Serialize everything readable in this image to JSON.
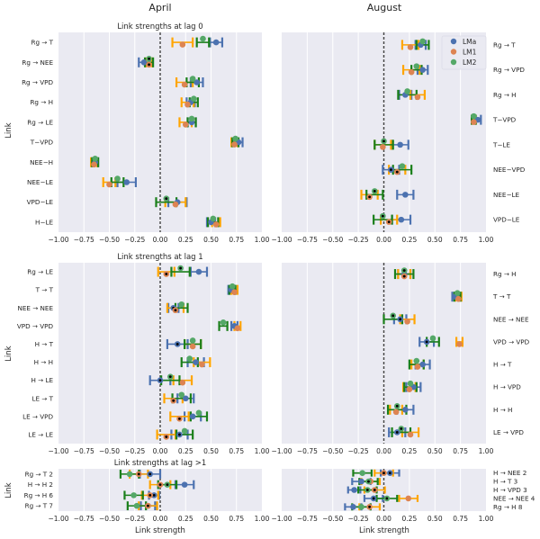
{
  "figure": {
    "column_titles": [
      "April",
      "August"
    ],
    "y_axis_label": "Link",
    "x_axis_label": "Link strength",
    "legend": {
      "placement": "upper-right of August lag-0 panel",
      "entries": [
        {
          "name": "LMa",
          "color": "#4c72b0"
        },
        {
          "name": "LM1",
          "color": "#dd8452"
        },
        {
          "name": "LM2",
          "color": "#55a868"
        }
      ]
    },
    "errorbar_colors": {
      "LMa": "#4c72b0",
      "LM1": "#ffa500",
      "LM2": "#1a7f1a"
    },
    "significance_marker_color": "#000000",
    "background_color": "#eaeaf2"
  },
  "chart_data": [
    {
      "type": "scatter",
      "panel": "April lag 0",
      "title": "Link strengths at lag 0",
      "xlabel": "",
      "ylabel": "Link",
      "xlim": [
        -1.0,
        1.0
      ],
      "xticks": [
        "−1.00",
        "−0.75",
        "−0.50",
        "−0.25",
        "0.00",
        "0.25",
        "0.50",
        "0.75",
        "1.00"
      ],
      "grid": true,
      "categories": [
        "Rg → T",
        "Rg → NEE",
        "Rg → VPD",
        "Rg → H",
        "Rg → LE",
        "T−VPD",
        "NEE−H",
        "NEE−LE",
        "VPD−LE",
        "H−LE"
      ],
      "series": [
        {
          "name": "LMa",
          "values": [
            0.55,
            -0.16,
            0.36,
            0.3,
            0.31,
            0.77,
            -0.64,
            -0.33,
            0.17,
            0.5
          ],
          "err": [
            0.06,
            0.05,
            0.06,
            0.04,
            0.04,
            0.04,
            0.03,
            0.09,
            0.09,
            0.04
          ],
          "significant": [
            false,
            false,
            false,
            false,
            false,
            false,
            false,
            false,
            false,
            false
          ]
        },
        {
          "name": "LM1",
          "values": [
            0.22,
            -0.11,
            0.24,
            0.27,
            0.25,
            0.73,
            -0.65,
            -0.5,
            0.15,
            0.55
          ],
          "err": [
            0.1,
            0.03,
            0.08,
            0.06,
            0.06,
            0.03,
            0.03,
            0.06,
            0.1,
            0.04
          ],
          "significant": [
            false,
            true,
            false,
            false,
            false,
            false,
            false,
            false,
            false,
            false
          ]
        },
        {
          "name": "LM2",
          "values": [
            0.42,
            -0.11,
            0.32,
            0.33,
            0.31,
            0.74,
            -0.64,
            -0.42,
            0.06,
            0.52
          ],
          "err": [
            0.06,
            0.04,
            0.06,
            0.04,
            0.04,
            0.03,
            0.03,
            0.06,
            0.1,
            0.05
          ],
          "significant": [
            false,
            true,
            false,
            false,
            false,
            false,
            false,
            false,
            true,
            false
          ]
        }
      ]
    },
    {
      "type": "scatter",
      "panel": "August lag 0",
      "title": "",
      "xlim": [
        -1.0,
        1.0
      ],
      "xticks": [
        "−1.00",
        "−0.75",
        "−0.50",
        "−0.25",
        "0.00",
        "0.25",
        "0.50",
        "0.75",
        "1.00"
      ],
      "grid": true,
      "categories": [
        "Rg → T",
        "Rg → VPD",
        "Rg → H",
        "T−VPD",
        "T−LE",
        "NEE−VPD",
        "NEE−LE",
        "VPD−LE"
      ],
      "series": [
        {
          "name": "LMa",
          "values": [
            0.36,
            0.38,
            0.21,
            0.92,
            0.16,
            0.07,
            0.21,
            0.17
          ],
          "err": [
            0.05,
            0.05,
            0.06,
            0.03,
            0.08,
            0.08,
            0.08,
            0.09
          ],
          "significant": [
            false,
            false,
            false,
            false,
            false,
            true,
            false,
            false
          ]
        },
        {
          "name": "LM1",
          "values": [
            0.26,
            0.27,
            0.33,
            0.88,
            -0.01,
            0.13,
            -0.14,
            0.05
          ],
          "err": [
            0.08,
            0.08,
            0.07,
            0.02,
            0.08,
            0.08,
            0.08,
            0.08
          ],
          "significant": [
            false,
            false,
            false,
            false,
            false,
            true,
            true,
            true
          ]
        },
        {
          "name": "LM2",
          "values": [
            0.38,
            0.32,
            0.23,
            0.88,
            0.0,
            0.18,
            -0.09,
            -0.01
          ],
          "err": [
            0.06,
            0.05,
            0.09,
            0.02,
            0.09,
            0.09,
            0.08,
            0.09
          ],
          "significant": [
            false,
            false,
            false,
            false,
            true,
            false,
            true,
            true
          ]
        }
      ]
    },
    {
      "type": "scatter",
      "panel": "April lag 1",
      "title": "Link strengths at lag 1",
      "xlabel": "",
      "ylabel": "Link",
      "xlim": [
        -1.0,
        1.0
      ],
      "xticks": [
        "−1.00",
        "−0.75",
        "−0.50",
        "−0.25",
        "0.00",
        "0.25",
        "0.50",
        "0.75",
        "1.00"
      ],
      "grid": true,
      "categories": [
        "Rg → LE",
        "T → T",
        "NEE → NEE",
        "VPD → VPD",
        "H → T",
        "H → H",
        "H → LE",
        "LE → T",
        "LE → VPD",
        "LE → LE"
      ],
      "series": [
        {
          "name": "LMa",
          "values": [
            0.38,
            0.7,
            0.13,
            0.73,
            0.17,
            0.35,
            0.0,
            0.25,
            0.32,
            0.19
          ],
          "err": [
            0.08,
            0.03,
            0.05,
            0.03,
            0.1,
            0.08,
            0.1,
            0.08,
            0.08,
            0.08
          ],
          "significant": [
            false,
            false,
            true,
            false,
            true,
            false,
            true,
            false,
            false,
            true
          ]
        },
        {
          "name": "LM1",
          "values": [
            0.06,
            0.73,
            0.15,
            0.76,
            0.32,
            0.41,
            0.22,
            0.13,
            0.19,
            0.06
          ],
          "err": [
            0.08,
            0.03,
            0.08,
            0.03,
            0.08,
            0.08,
            0.09,
            0.09,
            0.09,
            0.09
          ],
          "significant": [
            true,
            false,
            true,
            false,
            false,
            false,
            false,
            true,
            true,
            true
          ]
        },
        {
          "name": "LM2",
          "values": [
            0.2,
            0.71,
            0.21,
            0.62,
            0.32,
            0.29,
            0.1,
            0.21,
            0.38,
            0.24
          ],
          "err": [
            0.09,
            0.03,
            0.06,
            0.04,
            0.08,
            0.08,
            0.09,
            0.09,
            0.08,
            0.08
          ],
          "significant": [
            true,
            false,
            false,
            false,
            false,
            false,
            true,
            false,
            false,
            false
          ]
        }
      ]
    },
    {
      "type": "scatter",
      "panel": "August lag 1",
      "title": "",
      "xlim": [
        -1.0,
        1.0
      ],
      "xticks": [
        "−1.00",
        "−0.75",
        "−0.50",
        "−0.25",
        "0.00",
        "0.25",
        "0.50",
        "0.75",
        "1.00"
      ],
      "grid": true,
      "categories": [
        "Rg → H",
        "T → T",
        "NEE → NEE",
        "VPD → VPD",
        "H → T",
        "H → VPD",
        "H → H",
        "LE → VPD"
      ],
      "series": [
        {
          "name": "LMa",
          "values": [
            0.2,
            0.7,
            0.16,
            0.42,
            0.38,
            0.29,
            0.21,
            0.13
          ],
          "err": [
            0.06,
            0.03,
            0.06,
            0.07,
            0.07,
            0.07,
            0.08,
            0.08
          ],
          "significant": [
            false,
            false,
            true,
            true,
            false,
            false,
            false,
            true
          ]
        },
        {
          "name": "LM1",
          "values": [
            0.2,
            0.73,
            0.23,
            0.74,
            0.33,
            0.25,
            0.12,
            0.26
          ],
          "err": [
            0.06,
            0.03,
            0.07,
            0.03,
            0.06,
            0.06,
            0.06,
            0.08
          ],
          "significant": [
            true,
            false,
            false,
            false,
            false,
            false,
            false,
            false
          ]
        },
        {
          "name": "LM2",
          "values": [
            0.2,
            0.72,
            0.09,
            0.48,
            0.32,
            0.26,
            0.13,
            0.17
          ],
          "err": [
            0.09,
            0.03,
            0.09,
            0.06,
            0.07,
            0.06,
            0.09,
            0.09
          ],
          "significant": [
            true,
            false,
            true,
            false,
            false,
            false,
            true,
            true
          ]
        }
      ]
    },
    {
      "type": "scatter",
      "panel": "April lag >1",
      "title": "Link strengths at lag >1",
      "xlabel": "Link strength",
      "ylabel": "Link",
      "xlim": [
        -1.0,
        1.0
      ],
      "xticks": [
        "−1.00",
        "−0.75",
        "−0.50",
        "−0.25",
        "0.00",
        "0.25",
        "0.50",
        "0.75",
        "1.00"
      ],
      "grid": true,
      "categories": [
        "Rg → T 2",
        "H → H 2",
        "Rg → H 6",
        "Rg → T 7"
      ],
      "series": [
        {
          "name": "LMa",
          "values": [
            -0.1,
            0.24,
            -0.06,
            -0.12
          ],
          "err": [
            0.1,
            0.09,
            0.05,
            0.07
          ],
          "significant": [
            true,
            false,
            true,
            true
          ]
        },
        {
          "name": "LM1",
          "values": [
            -0.21,
            0.0,
            -0.1,
            -0.12
          ],
          "err": [
            0.09,
            0.1,
            0.08,
            0.09
          ],
          "significant": [
            true,
            true,
            true,
            true
          ]
        },
        {
          "name": "LM2",
          "values": [
            -0.3,
            0.07,
            -0.26,
            -0.23
          ],
          "err": [
            0.09,
            0.09,
            0.09,
            0.09
          ],
          "significant": [
            false,
            true,
            false,
            false
          ]
        }
      ]
    },
    {
      "type": "scatter",
      "panel": "August lag >1",
      "title": "",
      "xlabel": "Link strength",
      "xlim": [
        -1.0,
        1.0
      ],
      "xticks": [
        "−1.00",
        "−0.75",
        "−0.50",
        "−0.25",
        "0.00",
        "0.25",
        "0.50",
        "0.75",
        "1.00"
      ],
      "grid": true,
      "categories": [
        "H → NEE 2",
        "H → T 3",
        "H → VPD 3",
        "NEE → NEE 4",
        "Rg → H 8"
      ],
      "series": [
        {
          "name": "LMa",
          "values": [
            0.06,
            -0.22,
            -0.29,
            -0.1,
            -0.3
          ],
          "err": [
            0.09,
            0.09,
            0.06,
            0.09,
            0.08
          ],
          "significant": [
            true,
            false,
            false,
            true,
            false
          ]
        },
        {
          "name": "LM1",
          "values": [
            0.0,
            -0.13,
            -0.09,
            0.24,
            -0.14
          ],
          "err": [
            0.09,
            0.09,
            0.1,
            0.09,
            0.1
          ],
          "significant": [
            true,
            false,
            true,
            false,
            true
          ]
        },
        {
          "name": "LM2",
          "values": [
            -0.21,
            -0.15,
            -0.16,
            0.03,
            -0.22
          ],
          "err": [
            0.09,
            0.09,
            0.09,
            0.1,
            0.09
          ],
          "significant": [
            false,
            true,
            true,
            true,
            false
          ]
        }
      ]
    }
  ]
}
